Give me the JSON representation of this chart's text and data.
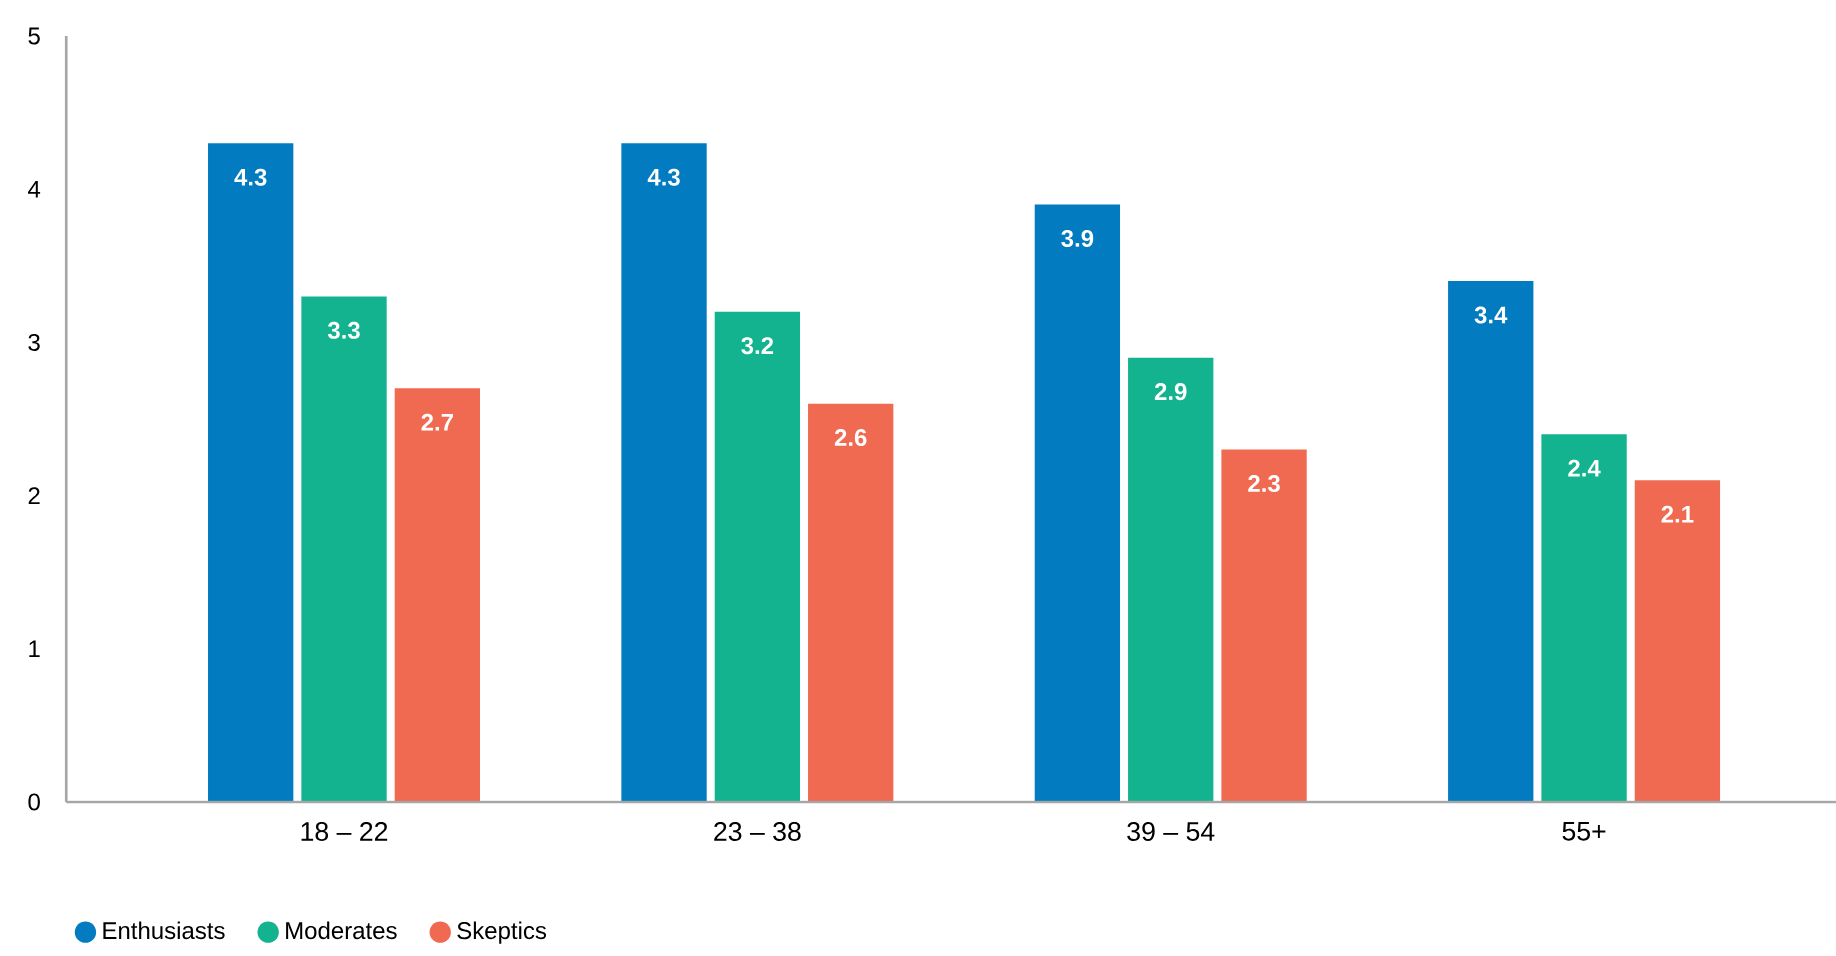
{
  "chart_data": {
    "type": "bar",
    "categories": [
      "18 – 22",
      "23 – 38",
      "39 – 54",
      "55+"
    ],
    "series": [
      {
        "name": "Enthusiasts",
        "color": "#027bc1",
        "values": [
          4.3,
          4.3,
          3.9,
          3.4
        ]
      },
      {
        "name": "Moderates",
        "color": "#13b38f",
        "values": [
          3.3,
          3.2,
          2.9,
          2.4
        ]
      },
      {
        "name": "Skeptics",
        "color": "#f06a51",
        "values": [
          2.7,
          2.6,
          2.3,
          2.1
        ]
      }
    ],
    "ylim": [
      0,
      5
    ],
    "yticks": [
      0,
      1,
      2,
      3,
      4,
      5
    ],
    "data_labels": true,
    "legend": "bottom left",
    "grid": false
  }
}
